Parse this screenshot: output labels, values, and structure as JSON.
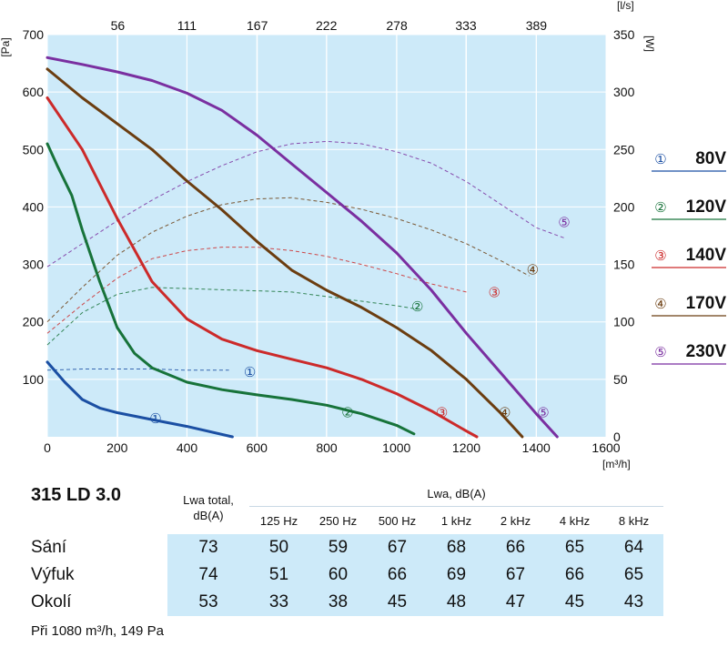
{
  "chart_data": {
    "type": "line",
    "xlabel": "[m³/h]",
    "ylabel_left": "[Pa]",
    "ylabel_right": "[W]",
    "x2label": "[l/s]",
    "xlim": [
      0,
      1600
    ],
    "ylim": [
      0,
      700
    ],
    "y2lim": [
      0,
      350
    ],
    "x_ticks": [
      "0",
      "200",
      "400",
      "600",
      "800",
      "1000",
      "1200",
      "1400",
      "1600"
    ],
    "y_ticks": [
      "700",
      "600",
      "500",
      "400",
      "300",
      "200",
      "100"
    ],
    "y2_ticks": [
      "350",
      "300",
      "250",
      "200",
      "150",
      "100",
      "50",
      "0"
    ],
    "x2_ticks": [
      "56",
      "111",
      "167",
      "222",
      "278",
      "333",
      "389"
    ],
    "grid": true,
    "colors": {
      "plot_bg": "#cdeaf9",
      "grid": "#ffffff",
      "s80": "#1b4fa3",
      "s120": "#17733a",
      "s140": "#cc2a2a",
      "s170": "#6b3d10",
      "s230": "#7a2fa0"
    },
    "pressure_series": [
      {
        "name": "80V",
        "marker": "①",
        "color": "#1b4fa3",
        "x": [
          0,
          50,
          100,
          150,
          200,
          300,
          400,
          530
        ],
        "y": [
          130,
          95,
          65,
          50,
          42,
          30,
          18,
          0
        ]
      },
      {
        "name": "120V",
        "marker": "②",
        "color": "#17733a",
        "x": [
          0,
          30,
          70,
          100,
          150,
          200,
          250,
          300,
          400,
          500,
          600,
          700,
          800,
          900,
          1000,
          1050
        ],
        "y": [
          510,
          470,
          420,
          360,
          270,
          190,
          145,
          120,
          95,
          82,
          73,
          65,
          55,
          40,
          20,
          5
        ]
      },
      {
        "name": "140V",
        "marker": "③",
        "color": "#cc2a2a",
        "x": [
          0,
          100,
          200,
          300,
          400,
          500,
          600,
          700,
          800,
          900,
          1000,
          1100,
          1200,
          1230
        ],
        "y": [
          590,
          500,
          380,
          270,
          205,
          170,
          150,
          135,
          120,
          100,
          75,
          45,
          10,
          0
        ]
      },
      {
        "name": "170V",
        "marker": "④",
        "color": "#6b3d10",
        "x": [
          0,
          100,
          200,
          300,
          400,
          500,
          600,
          700,
          800,
          900,
          1000,
          1100,
          1200,
          1300,
          1360
        ],
        "y": [
          640,
          590,
          545,
          500,
          445,
          395,
          340,
          290,
          255,
          225,
          190,
          150,
          100,
          40,
          0
        ]
      },
      {
        "name": "230V",
        "marker": "⑤",
        "color": "#7a2fa0",
        "x": [
          0,
          100,
          200,
          300,
          400,
          500,
          600,
          700,
          800,
          900,
          1000,
          1100,
          1200,
          1300,
          1400,
          1460
        ],
        "y": [
          660,
          648,
          635,
          620,
          598,
          568,
          525,
          475,
          425,
          375,
          320,
          255,
          180,
          110,
          40,
          0
        ]
      }
    ],
    "power_series": [
      {
        "name": "80V",
        "marker": "①",
        "color": "#1b4fa3",
        "x": [
          0,
          100,
          200,
          300,
          400,
          520
        ],
        "y": [
          58,
          59,
          59,
          59,
          58,
          58
        ]
      },
      {
        "name": "120V",
        "marker": "②",
        "color": "#17733a",
        "x": [
          0,
          100,
          200,
          300,
          400,
          500,
          600,
          700,
          800,
          900,
          1000,
          1060
        ],
        "y": [
          80,
          108,
          124,
          130,
          129,
          128,
          127,
          126,
          122,
          118,
          114,
          111
        ]
      },
      {
        "name": "140V",
        "marker": "③",
        "color": "#cc2a2a",
        "x": [
          0,
          100,
          200,
          300,
          400,
          500,
          600,
          700,
          800,
          900,
          1000,
          1100,
          1200
        ],
        "y": [
          90,
          115,
          138,
          155,
          162,
          165,
          165,
          162,
          157,
          150,
          142,
          133,
          126
        ]
      },
      {
        "name": "170V",
        "marker": "④",
        "color": "#6b3d10",
        "x": [
          0,
          100,
          200,
          300,
          400,
          500,
          600,
          700,
          800,
          900,
          1000,
          1100,
          1200,
          1300,
          1380
        ],
        "y": [
          100,
          130,
          158,
          178,
          192,
          202,
          207,
          208,
          204,
          198,
          190,
          180,
          168,
          153,
          140
        ]
      },
      {
        "name": "230V",
        "marker": "⑤",
        "color": "#7a2fa0",
        "x": [
          0,
          100,
          200,
          300,
          400,
          500,
          600,
          700,
          800,
          900,
          1000,
          1100,
          1200,
          1300,
          1400,
          1480
        ],
        "y": [
          148,
          168,
          188,
          206,
          222,
          236,
          248,
          255,
          257,
          255,
          248,
          238,
          222,
          202,
          182,
          173
        ]
      }
    ],
    "legend": [
      {
        "marker": "①",
        "label": "80V",
        "color": "#1b4fa3"
      },
      {
        "marker": "②",
        "label": "120V",
        "color": "#17733a"
      },
      {
        "marker": "③",
        "label": "140V",
        "color": "#cc2a2a"
      },
      {
        "marker": "④",
        "label": "170V",
        "color": "#6b3d10"
      },
      {
        "marker": "⑤",
        "label": "230V",
        "color": "#7a2fa0"
      }
    ],
    "legend_position": "right"
  },
  "noise_table": {
    "model": "315 LD 3.0",
    "total_header_line1": "Lwa total,",
    "total_header_line2": "dB(A)",
    "group_header": "Lwa, dB(A)",
    "frequencies": [
      "125 Hz",
      "250 Hz",
      "500 Hz",
      "1 kHz",
      "2 kHz",
      "4 kHz",
      "8 kHz"
    ],
    "rows": [
      {
        "label": "Sání",
        "total": "73",
        "values": [
          "50",
          "59",
          "67",
          "68",
          "66",
          "65",
          "64"
        ]
      },
      {
        "label": "Výfuk",
        "total": "74",
        "values": [
          "51",
          "60",
          "66",
          "69",
          "67",
          "66",
          "65"
        ]
      },
      {
        "label": "Okolí",
        "total": "53",
        "values": [
          "33",
          "38",
          "45",
          "48",
          "47",
          "45",
          "43"
        ]
      }
    ],
    "note": "Při 1080 m³/h, 149 Pa"
  }
}
